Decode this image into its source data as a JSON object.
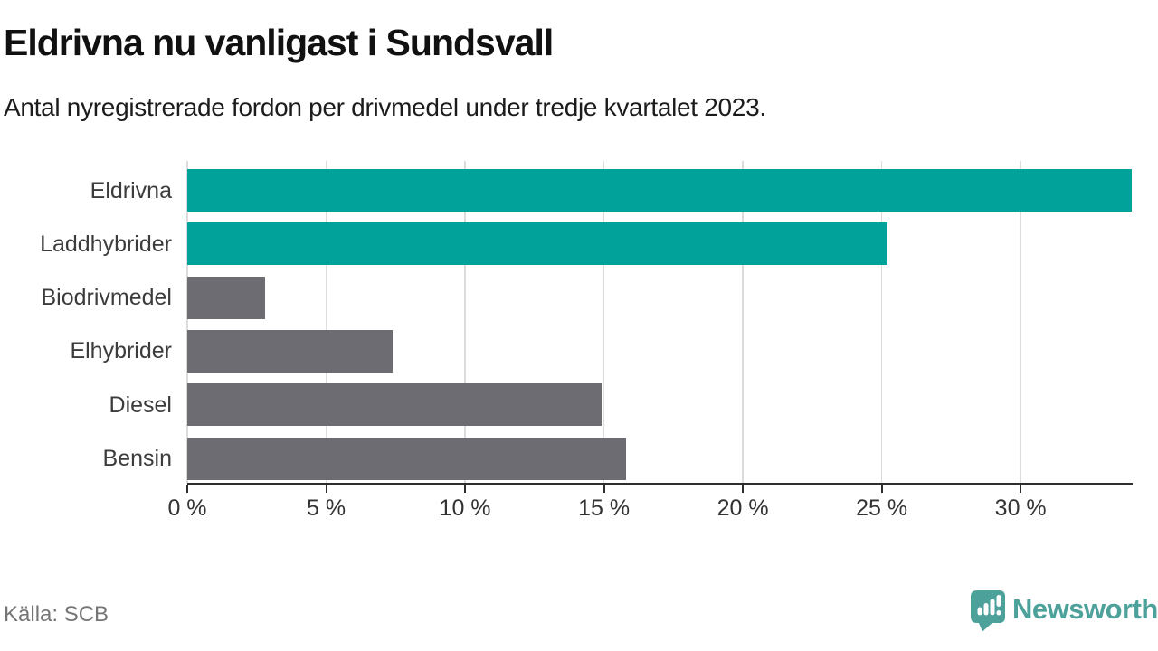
{
  "header": {
    "title": "Eldrivna nu vanligast i Sundsvall",
    "subtitle": "Antal nyregistrerade fordon per drivmedel under tredje kvartalet 2023."
  },
  "chart_data": {
    "type": "bar",
    "orientation": "horizontal",
    "title": "Eldrivna nu vanligast i Sundsvall",
    "subtitle": "Antal nyregistrerade fordon per drivmedel under tredje kvartalet 2023.",
    "categories": [
      "Eldrivna",
      "Laddhybrider",
      "Biodrivmedel",
      "Elhybrider",
      "Diesel",
      "Bensin"
    ],
    "values": [
      34.0,
      25.2,
      2.8,
      7.4,
      14.9,
      15.8
    ],
    "unit": "%",
    "xlim": [
      0,
      34
    ],
    "x_ticks": [
      0,
      5,
      10,
      15,
      20,
      25,
      30
    ],
    "x_tick_labels": [
      "0 %",
      "5 %",
      "10 %",
      "15 %",
      "20 %",
      "25 %",
      "30 %"
    ],
    "grid": "vertical",
    "legend": "none",
    "colors": {
      "highlight": "#00a29a",
      "default": "#6c6c72",
      "highlighted_categories": [
        "Eldrivna",
        "Laddhybrider"
      ]
    }
  },
  "footer": {
    "source": "Källa: SCB",
    "brand": "Newsworthy",
    "brand_color": "#4da19b",
    "icon": "newsworthy-speech-bubble-chart-icon"
  }
}
